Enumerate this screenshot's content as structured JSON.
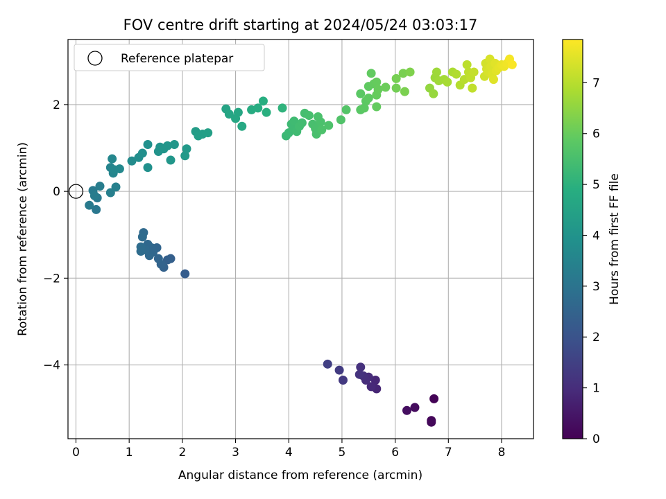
{
  "chart_data": {
    "type": "scatter",
    "title": "FOV centre drift starting at 2024/05/24 03:03:17",
    "xlabel": "Angular distance from reference (arcmin)",
    "ylabel": "Rotation from reference (arcmin)",
    "xlim": [
      -0.15,
      8.6
    ],
    "ylim": [
      -5.7,
      3.5
    ],
    "xticks": [
      0,
      1,
      2,
      3,
      4,
      5,
      6,
      7,
      8
    ],
    "yticks": [
      -4,
      -2,
      0,
      2
    ],
    "grid": true,
    "colormap": "viridis",
    "colorbar": {
      "label": "Hours from first FF file",
      "range": [
        0,
        7.85
      ],
      "ticks": [
        0,
        1,
        2,
        3,
        4,
        5,
        6,
        7
      ]
    },
    "legend": {
      "position": "top-left",
      "entries": [
        "Reference platepar"
      ]
    },
    "reference_point": {
      "x": 0,
      "y": 0,
      "label": "Reference platepar"
    },
    "series": [
      {
        "points": [
          {
            "x": 6.73,
            "y": -4.78,
            "t": 0.05
          },
          {
            "x": 6.68,
            "y": -5.28,
            "t": 0.1
          },
          {
            "x": 6.68,
            "y": -5.32,
            "t": 0.15
          },
          {
            "x": 6.37,
            "y": -4.98,
            "t": 0.25
          },
          {
            "x": 6.22,
            "y": -5.05,
            "t": 0.3
          },
          {
            "x": 5.65,
            "y": -4.55,
            "t": 0.8
          },
          {
            "x": 5.63,
            "y": -4.35,
            "t": 0.85
          },
          {
            "x": 5.55,
            "y": -4.5,
            "t": 0.9
          },
          {
            "x": 5.5,
            "y": -4.28,
            "t": 0.95
          },
          {
            "x": 5.45,
            "y": -4.35,
            "t": 1.0
          },
          {
            "x": 5.4,
            "y": -4.25,
            "t": 1.05
          },
          {
            "x": 5.35,
            "y": -4.05,
            "t": 1.1
          },
          {
            "x": 5.33,
            "y": -4.22,
            "t": 1.15
          },
          {
            "x": 5.02,
            "y": -4.35,
            "t": 1.3
          },
          {
            "x": 4.95,
            "y": -4.12,
            "t": 1.35
          },
          {
            "x": 4.73,
            "y": -3.98,
            "t": 1.45
          },
          {
            "x": 2.05,
            "y": -1.9,
            "t": 2.3
          },
          {
            "x": 1.78,
            "y": -1.55,
            "t": 2.35
          },
          {
            "x": 1.72,
            "y": -1.58,
            "t": 2.4
          },
          {
            "x": 1.65,
            "y": -1.75,
            "t": 2.45
          },
          {
            "x": 1.6,
            "y": -1.68,
            "t": 2.5
          },
          {
            "x": 1.55,
            "y": -1.55,
            "t": 2.55
          },
          {
            "x": 1.52,
            "y": -1.3,
            "t": 2.55
          },
          {
            "x": 1.45,
            "y": -1.4,
            "t": 2.6
          },
          {
            "x": 1.42,
            "y": -1.3,
            "t": 2.6
          },
          {
            "x": 1.38,
            "y": -1.48,
            "t": 2.65
          },
          {
            "x": 1.35,
            "y": -1.22,
            "t": 2.65
          },
          {
            "x": 1.3,
            "y": -1.35,
            "t": 2.7
          },
          {
            "x": 1.27,
            "y": -0.95,
            "t": 2.7
          },
          {
            "x": 1.25,
            "y": -1.05,
            "t": 2.72
          },
          {
            "x": 1.22,
            "y": -1.28,
            "t": 2.75
          },
          {
            "x": 1.22,
            "y": -1.38,
            "t": 2.75
          },
          {
            "x": 0.38,
            "y": -0.42,
            "t": 3.1
          },
          {
            "x": 0.4,
            "y": -0.15,
            "t": 3.15
          },
          {
            "x": 0.25,
            "y": -0.32,
            "t": 3.2
          },
          {
            "x": 0.32,
            "y": 0.02,
            "t": 3.2
          },
          {
            "x": 0.35,
            "y": -0.1,
            "t": 3.25
          },
          {
            "x": 0.45,
            "y": 0.12,
            "t": 3.3
          },
          {
            "x": 0.65,
            "y": -0.03,
            "t": 3.35
          },
          {
            "x": 0.75,
            "y": 0.1,
            "t": 3.4
          },
          {
            "x": 0.65,
            "y": 0.55,
            "t": 3.5
          },
          {
            "x": 0.7,
            "y": 0.42,
            "t": 3.55
          },
          {
            "x": 0.68,
            "y": 0.75,
            "t": 3.6
          },
          {
            "x": 0.72,
            "y": 0.5,
            "t": 3.6
          },
          {
            "x": 0.82,
            "y": 0.52,
            "t": 3.65
          },
          {
            "x": 1.05,
            "y": 0.7,
            "t": 3.75
          },
          {
            "x": 1.18,
            "y": 0.78,
            "t": 3.8
          },
          {
            "x": 1.25,
            "y": 0.88,
            "t": 3.85
          },
          {
            "x": 1.35,
            "y": 0.55,
            "t": 3.9
          },
          {
            "x": 1.35,
            "y": 1.08,
            "t": 3.9
          },
          {
            "x": 1.55,
            "y": 0.92,
            "t": 4.0
          },
          {
            "x": 1.58,
            "y": 1.02,
            "t": 4.0
          },
          {
            "x": 1.65,
            "y": 0.98,
            "t": 4.05
          },
          {
            "x": 1.72,
            "y": 1.05,
            "t": 4.05
          },
          {
            "x": 1.78,
            "y": 0.72,
            "t": 4.1
          },
          {
            "x": 1.85,
            "y": 1.08,
            "t": 4.1
          },
          {
            "x": 2.05,
            "y": 0.82,
            "t": 4.2
          },
          {
            "x": 2.08,
            "y": 0.98,
            "t": 4.2
          },
          {
            "x": 2.25,
            "y": 1.38,
            "t": 4.3
          },
          {
            "x": 2.3,
            "y": 1.28,
            "t": 4.35
          },
          {
            "x": 2.38,
            "y": 1.32,
            "t": 4.35
          },
          {
            "x": 2.48,
            "y": 1.35,
            "t": 4.4
          },
          {
            "x": 2.82,
            "y": 1.9,
            "t": 4.55
          },
          {
            "x": 2.88,
            "y": 1.78,
            "t": 4.6
          },
          {
            "x": 3.0,
            "y": 1.68,
            "t": 4.65
          },
          {
            "x": 3.05,
            "y": 1.82,
            "t": 4.65
          },
          {
            "x": 3.12,
            "y": 1.5,
            "t": 4.7
          },
          {
            "x": 3.3,
            "y": 1.88,
            "t": 4.8
          },
          {
            "x": 3.42,
            "y": 1.92,
            "t": 4.85
          },
          {
            "x": 3.52,
            "y": 2.08,
            "t": 4.9
          },
          {
            "x": 3.58,
            "y": 1.82,
            "t": 4.95
          },
          {
            "x": 3.88,
            "y": 1.92,
            "t": 5.05
          },
          {
            "x": 3.95,
            "y": 1.28,
            "t": 5.25
          },
          {
            "x": 4.0,
            "y": 1.35,
            "t": 5.28
          },
          {
            "x": 4.05,
            "y": 1.55,
            "t": 5.3
          },
          {
            "x": 4.08,
            "y": 1.45,
            "t": 5.32
          },
          {
            "x": 4.1,
            "y": 1.62,
            "t": 5.35
          },
          {
            "x": 4.15,
            "y": 1.38,
            "t": 5.35
          },
          {
            "x": 4.2,
            "y": 1.5,
            "t": 5.4
          },
          {
            "x": 4.25,
            "y": 1.58,
            "t": 5.4
          },
          {
            "x": 4.3,
            "y": 1.8,
            "t": 5.45
          },
          {
            "x": 4.38,
            "y": 1.75,
            "t": 5.48
          },
          {
            "x": 4.45,
            "y": 1.55,
            "t": 5.5
          },
          {
            "x": 4.5,
            "y": 1.45,
            "t": 5.52
          },
          {
            "x": 4.52,
            "y": 1.32,
            "t": 5.52
          },
          {
            "x": 4.55,
            "y": 1.72,
            "t": 5.55
          },
          {
            "x": 4.6,
            "y": 1.6,
            "t": 5.55
          },
          {
            "x": 4.62,
            "y": 1.42,
            "t": 5.58
          },
          {
            "x": 4.75,
            "y": 1.52,
            "t": 5.6
          },
          {
            "x": 4.98,
            "y": 1.65,
            "t": 5.65
          },
          {
            "x": 5.08,
            "y": 1.88,
            "t": 5.7
          },
          {
            "x": 5.35,
            "y": 1.88,
            "t": 5.8
          },
          {
            "x": 5.35,
            "y": 2.25,
            "t": 5.82
          },
          {
            "x": 5.42,
            "y": 1.92,
            "t": 5.85
          },
          {
            "x": 5.45,
            "y": 2.08,
            "t": 5.85
          },
          {
            "x": 5.5,
            "y": 2.15,
            "t": 5.88
          },
          {
            "x": 5.5,
            "y": 2.42,
            "t": 5.9
          },
          {
            "x": 5.55,
            "y": 2.72,
            "t": 5.92
          },
          {
            "x": 5.6,
            "y": 2.48,
            "t": 5.95
          },
          {
            "x": 5.65,
            "y": 1.95,
            "t": 5.95
          },
          {
            "x": 5.65,
            "y": 2.22,
            "t": 5.98
          },
          {
            "x": 5.65,
            "y": 2.52,
            "t": 5.98
          },
          {
            "x": 5.68,
            "y": 2.35,
            "t": 6.0
          },
          {
            "x": 5.82,
            "y": 2.4,
            "t": 6.05
          },
          {
            "x": 6.02,
            "y": 2.38,
            "t": 6.15
          },
          {
            "x": 6.02,
            "y": 2.6,
            "t": 6.18
          },
          {
            "x": 6.15,
            "y": 2.72,
            "t": 6.22
          },
          {
            "x": 6.18,
            "y": 2.3,
            "t": 6.25
          },
          {
            "x": 6.28,
            "y": 2.75,
            "t": 6.3
          },
          {
            "x": 6.65,
            "y": 2.38,
            "t": 6.55
          },
          {
            "x": 6.72,
            "y": 2.25,
            "t": 6.6
          },
          {
            "x": 6.75,
            "y": 2.62,
            "t": 6.65
          },
          {
            "x": 6.78,
            "y": 2.75,
            "t": 6.68
          },
          {
            "x": 6.82,
            "y": 2.55,
            "t": 6.7
          },
          {
            "x": 6.92,
            "y": 2.58,
            "t": 6.75
          },
          {
            "x": 6.98,
            "y": 2.52,
            "t": 6.8
          },
          {
            "x": 7.08,
            "y": 2.75,
            "t": 6.85
          },
          {
            "x": 7.15,
            "y": 2.7,
            "t": 6.9
          },
          {
            "x": 7.22,
            "y": 2.45,
            "t": 6.95
          },
          {
            "x": 7.3,
            "y": 2.58,
            "t": 7.0
          },
          {
            "x": 7.35,
            "y": 2.92,
            "t": 7.05
          },
          {
            "x": 7.38,
            "y": 2.75,
            "t": 7.08
          },
          {
            "x": 7.42,
            "y": 2.62,
            "t": 7.1
          },
          {
            "x": 7.45,
            "y": 2.38,
            "t": 7.12
          },
          {
            "x": 7.48,
            "y": 2.75,
            "t": 7.15
          },
          {
            "x": 7.68,
            "y": 2.65,
            "t": 7.3
          },
          {
            "x": 7.7,
            "y": 2.95,
            "t": 7.32
          },
          {
            "x": 7.72,
            "y": 2.82,
            "t": 7.35
          },
          {
            "x": 7.75,
            "y": 2.75,
            "t": 7.38
          },
          {
            "x": 7.78,
            "y": 3.05,
            "t": 7.4
          },
          {
            "x": 7.8,
            "y": 2.88,
            "t": 7.42
          },
          {
            "x": 7.82,
            "y": 2.7,
            "t": 7.45
          },
          {
            "x": 7.85,
            "y": 2.58,
            "t": 7.48
          },
          {
            "x": 7.88,
            "y": 2.95,
            "t": 7.5
          },
          {
            "x": 7.9,
            "y": 2.78,
            "t": 7.52
          },
          {
            "x": 7.95,
            "y": 2.85,
            "t": 7.55
          },
          {
            "x": 8.0,
            "y": 2.92,
            "t": 7.6
          },
          {
            "x": 8.05,
            "y": 2.88,
            "t": 7.65
          },
          {
            "x": 8.1,
            "y": 2.95,
            "t": 7.7
          },
          {
            "x": 8.15,
            "y": 3.05,
            "t": 7.75
          },
          {
            "x": 8.2,
            "y": 2.92,
            "t": 7.8
          }
        ]
      }
    ]
  }
}
